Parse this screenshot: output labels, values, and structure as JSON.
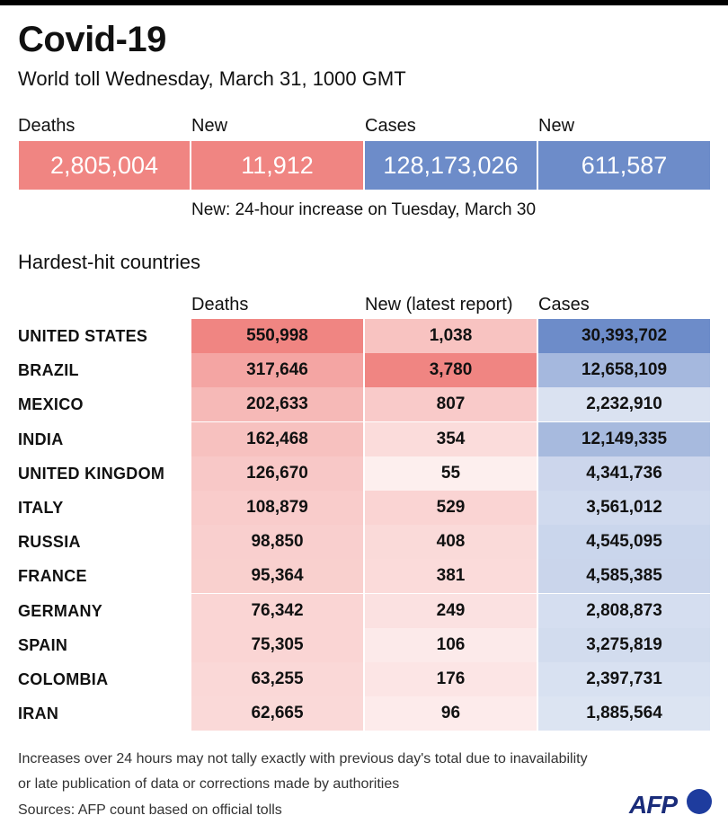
{
  "header": {
    "title": "Covid-19",
    "subtitle": "World toll Wednesday, March 31,  1000 GMT"
  },
  "summary": {
    "items": [
      {
        "label": "Deaths",
        "value": "2,805,004",
        "color": "#f08582"
      },
      {
        "label": "New",
        "value": "11,912",
        "color": "#f08582"
      },
      {
        "label": "Cases",
        "value": "128,173,026",
        "color": "#6d8cc9"
      },
      {
        "label": "New",
        "value": "611,587",
        "color": "#6d8cc9"
      }
    ],
    "note": "New: 24-hour increase on Tuesday, March 30"
  },
  "table": {
    "section_title": "Hardest-hit countries",
    "columns": [
      "Deaths",
      "New (latest report)",
      "Cases"
    ]
  },
  "chart_data": {
    "type": "table",
    "title": "Hardest-hit countries",
    "columns": [
      "Deaths",
      "New (latest report)",
      "Cases"
    ],
    "rows": [
      {
        "country": "UNITED STATES",
        "deaths": 550998,
        "new": 1038,
        "cases": 30393702
      },
      {
        "country": "BRAZIL",
        "deaths": 317646,
        "new": 3780,
        "cases": 12658109
      },
      {
        "country": "MEXICO",
        "deaths": 202633,
        "new": 807,
        "cases": 2232910
      },
      {
        "country": "INDIA",
        "deaths": 162468,
        "new": 354,
        "cases": 12149335
      },
      {
        "country": "UNITED KINGDOM",
        "deaths": 126670,
        "new": 55,
        "cases": 4341736
      },
      {
        "country": "ITALY",
        "deaths": 108879,
        "new": 529,
        "cases": 3561012
      },
      {
        "country": "RUSSIA",
        "deaths": 98850,
        "new": 408,
        "cases": 4545095
      },
      {
        "country": "FRANCE",
        "deaths": 95364,
        "new": 381,
        "cases": 4585385
      },
      {
        "country": "GERMANY",
        "deaths": 76342,
        "new": 249,
        "cases": 2808873
      },
      {
        "country": "SPAIN",
        "deaths": 75305,
        "new": 106,
        "cases": 3275819
      },
      {
        "country": "COLOMBIA",
        "deaths": 63255,
        "new": 176,
        "cases": 2397731
      },
      {
        "country": "IRAN",
        "deaths": 62665,
        "new": 96,
        "cases": 1885564
      }
    ],
    "colors": {
      "deaths": "#f08582",
      "new": "#f08582",
      "cases": "#6d8cc9"
    }
  },
  "footnotes": [
    "Increases over 24 hours may not tally exactly with previous day's total due to inavailability",
    "or late publication of data or corrections made by authorities",
    "Sources: AFP count based on official tolls"
  ],
  "logo": {
    "text": "AFP"
  }
}
